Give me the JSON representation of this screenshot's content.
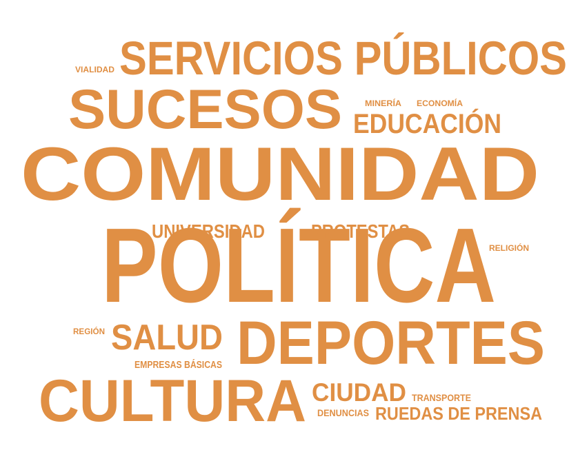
{
  "color": "#E08F44",
  "words": [
    {
      "key": "comunidad",
      "text": "COMUNIDAD"
    },
    {
      "key": "politica",
      "text": "POLÍTICA"
    },
    {
      "key": "servicios_publicos",
      "text": "SERVICIOS PÚBLICOS"
    },
    {
      "key": "sucesos",
      "text": "SUCESOS"
    },
    {
      "key": "deportes",
      "text": "DEPORTES"
    },
    {
      "key": "cultura",
      "text": "CULTURA"
    },
    {
      "key": "educacion",
      "text": "EDUCACIÓN"
    },
    {
      "key": "salud",
      "text": "SALUD"
    },
    {
      "key": "ciudad",
      "text": "CIUDAD"
    },
    {
      "key": "universidad",
      "text": "UNIVERSIDAD"
    },
    {
      "key": "protestas",
      "text": "PROTESTAS"
    },
    {
      "key": "ruedas_de_prensa",
      "text": "RUEDAS DE PRENSA"
    },
    {
      "key": "empresas_basicas",
      "text": "EMPRESAS BÁSICAS"
    },
    {
      "key": "vialidad",
      "text": "VIALIDAD"
    },
    {
      "key": "mineria",
      "text": "MINERÍA"
    },
    {
      "key": "economia",
      "text": "ECONOMÍA"
    },
    {
      "key": "religion",
      "text": "RELIGIÓN"
    },
    {
      "key": "region",
      "text": "REGIÓN"
    },
    {
      "key": "transporte",
      "text": "TRANSPORTE"
    },
    {
      "key": "denuncias",
      "text": "DENUNCIAS"
    }
  ]
}
